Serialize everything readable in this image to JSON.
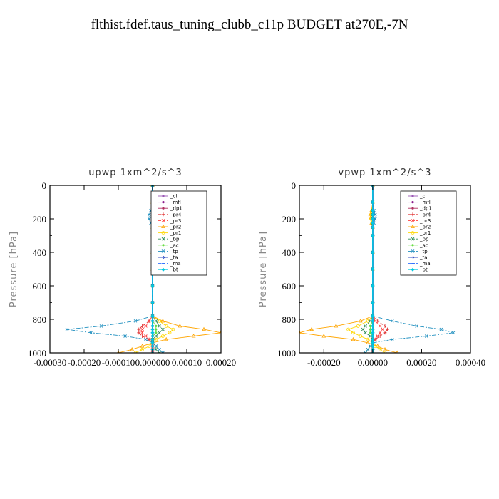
{
  "figure_title": "flthist.fdef.taus_tuning_clubb_c11p  BUDGET at270E,-7N",
  "series_styles": [
    {
      "name": "_cl",
      "color": "#9b59b6",
      "marker": "dot",
      "dash": ""
    },
    {
      "name": "_mfl",
      "color": "#8b1a8b",
      "marker": "dot",
      "dash": ""
    },
    {
      "name": "_dp1",
      "color": "#b03060",
      "marker": "dot",
      "dash": ""
    },
    {
      "name": "_pr4",
      "color": "#e03030",
      "marker": "plus",
      "dash": "4,2"
    },
    {
      "name": "_pr3",
      "color": "#ff4040",
      "marker": "x",
      "dash": "4,2"
    },
    {
      "name": "_pr2",
      "color": "#ffa500",
      "marker": "tri",
      "dash": ""
    },
    {
      "name": "_pr1",
      "color": "#ffd700",
      "marker": "circle",
      "dash": ""
    },
    {
      "name": "_bp",
      "color": "#2e8b57",
      "marker": "x",
      "dash": "4,2"
    },
    {
      "name": "_ac",
      "color": "#66dd44",
      "marker": "dot",
      "dash": ""
    },
    {
      "name": "_tp",
      "color": "#1f8fbf",
      "marker": "x",
      "dash": "6,2,2,2"
    },
    {
      "name": "_ta",
      "color": "#2040c0",
      "marker": "arrow",
      "dash": ""
    },
    {
      "name": "_ma",
      "color": "#3070ff",
      "marker": "dash",
      "dash": "4,2"
    },
    {
      "name": "_bt",
      "color": "#00c8e0",
      "marker": "diamond",
      "dash": ""
    }
  ],
  "chart_data": [
    {
      "type": "line",
      "title": "upwp   1xm^2/s^3",
      "xlabel": "",
      "ylabel": "Pressure [hPa]",
      "xlim": [
        -0.0003,
        0.0002
      ],
      "ylim": [
        1000,
        0
      ],
      "x_tick_labels": [
        "-0.00030",
        "-0.00020",
        "-0.00010",
        "0.000000",
        "0.00010",
        "0.00020"
      ],
      "x_ticks": [
        -0.0003,
        -0.0002,
        -0.0001,
        0.0,
        0.0001,
        0.0002
      ],
      "y_ticks": [
        0,
        200,
        400,
        600,
        800,
        1000
      ],
      "y_tick_labels": [
        "0",
        "200",
        "400",
        "600",
        "800",
        "1000"
      ],
      "grid": false,
      "legend_position": "top-right",
      "pressure_levels": [
        0,
        100,
        150,
        175,
        200,
        225,
        250,
        300,
        400,
        500,
        600,
        700,
        780,
        810,
        840,
        860,
        880,
        900,
        920,
        940,
        960,
        980,
        1000
      ],
      "series": [
        {
          "name": "_cl",
          "values": [
            0,
            0,
            0,
            0,
            0,
            0,
            0,
            0,
            0,
            0,
            0,
            0,
            0,
            0,
            0,
            0,
            0,
            0,
            0,
            0,
            0,
            0,
            0
          ]
        },
        {
          "name": "_mfl",
          "values": [
            0,
            0,
            0,
            0,
            0,
            0,
            0,
            0,
            0,
            0,
            0,
            0,
            0,
            0,
            0,
            0,
            0,
            0,
            0,
            0,
            0,
            0,
            0
          ]
        },
        {
          "name": "_dp1",
          "values": [
            0,
            0,
            0,
            0,
            0,
            0,
            0,
            0,
            0,
            0,
            0,
            0,
            0,
            0,
            0,
            0,
            0,
            0,
            0,
            0,
            0,
            0,
            0
          ]
        },
        {
          "name": "_pr4",
          "values": [
            0,
            0,
            0,
            0,
            0,
            0,
            0,
            0,
            0,
            0,
            0,
            0,
            0,
            -1e-05,
            -3e-05,
            -4e-05,
            -4e-05,
            -3e-05,
            -1e-05,
            0,
            0,
            0,
            0
          ]
        },
        {
          "name": "_pr3",
          "values": [
            0,
            0,
            0,
            0,
            0,
            0,
            0,
            0,
            0,
            0,
            0,
            0,
            0,
            -1e-05,
            -2e-05,
            -3e-05,
            -3e-05,
            -2e-05,
            -1e-05,
            0,
            0,
            0,
            0
          ]
        },
        {
          "name": "_pr2",
          "values": [
            0,
            0,
            5e-06,
            1e-05,
            1e-05,
            5e-06,
            0,
            0,
            0,
            0,
            0,
            0,
            0,
            3e-05,
            8e-05,
            0.00015,
            0.0002,
            0.00012,
            4e-05,
            0,
            -3e-05,
            -6e-05,
            -0.0001
          ]
        },
        {
          "name": "_pr1",
          "values": [
            0,
            0,
            3e-06,
            6e-06,
            6e-06,
            3e-06,
            0,
            0,
            0,
            0,
            0,
            0,
            0,
            2e-05,
            4e-05,
            6e-05,
            5e-05,
            3e-05,
            1e-05,
            0,
            -1e-05,
            -3e-05,
            -5e-05
          ]
        },
        {
          "name": "_bp",
          "values": [
            0,
            0,
            0,
            0,
            0,
            0,
            0,
            0,
            0,
            0,
            0,
            0,
            0,
            1e-05,
            2e-05,
            3e-05,
            2e-05,
            1e-05,
            0,
            0,
            1e-05,
            1e-05,
            2e-05
          ]
        },
        {
          "name": "_ac",
          "values": [
            0,
            0,
            0,
            0,
            0,
            0,
            0,
            0,
            0,
            0,
            0,
            0,
            0,
            0,
            1e-05,
            1e-05,
            1e-05,
            0,
            0,
            0,
            0,
            0,
            0
          ]
        },
        {
          "name": "_tp",
          "values": [
            0,
            0,
            -5e-06,
            -1e-05,
            -1e-05,
            -5e-06,
            0,
            0,
            0,
            0,
            0,
            0,
            0,
            -5e-05,
            -0.00015,
            -0.00025,
            -0.00018,
            -8e-05,
            -2e-05,
            0,
            1e-05,
            2e-05,
            3e-05
          ]
        },
        {
          "name": "_ta",
          "values": [
            0,
            0,
            0,
            0,
            0,
            0,
            0,
            0,
            0,
            0,
            0,
            0,
            0,
            0,
            0,
            0,
            0,
            0,
            0,
            0,
            0,
            0,
            0
          ]
        },
        {
          "name": "_ma",
          "values": [
            0,
            0,
            0,
            0,
            0,
            0,
            0,
            0,
            0,
            0,
            0,
            0,
            0,
            0,
            0,
            0,
            0,
            0,
            0,
            0,
            0,
            0,
            0
          ]
        },
        {
          "name": "_bt",
          "values": [
            0,
            0,
            0,
            0,
            0,
            0,
            0,
            0,
            0,
            0,
            0,
            0,
            0,
            0,
            0,
            0,
            0,
            0,
            0,
            0,
            0,
            0,
            0
          ]
        }
      ]
    },
    {
      "type": "line",
      "title": "vpwp   1xm^2/s^3",
      "xlabel": "",
      "ylabel": "Pressure [hPa]",
      "xlim": [
        -0.0003,
        0.0004
      ],
      "ylim": [
        1000,
        0
      ],
      "x_tick_labels": [
        "-0.00020",
        "0.00000",
        "0.00020",
        "0.00040"
      ],
      "x_ticks": [
        -0.0002,
        0.0,
        0.0002,
        0.0004
      ],
      "y_ticks": [
        0,
        200,
        400,
        600,
        800,
        1000
      ],
      "y_tick_labels": [
        "0",
        "200",
        "400",
        "600",
        "800",
        "1000"
      ],
      "grid": false,
      "legend_position": "top-right",
      "pressure_levels": [
        0,
        100,
        150,
        175,
        200,
        225,
        250,
        300,
        400,
        500,
        600,
        700,
        780,
        810,
        840,
        860,
        880,
        900,
        920,
        940,
        960,
        980,
        1000
      ],
      "series": [
        {
          "name": "_cl",
          "values": [
            0,
            0,
            0,
            0,
            0,
            0,
            0,
            0,
            0,
            0,
            0,
            0,
            0,
            0,
            0,
            0,
            0,
            0,
            0,
            0,
            0,
            0,
            0
          ]
        },
        {
          "name": "_mfl",
          "values": [
            0,
            0,
            0,
            0,
            0,
            0,
            0,
            0,
            0,
            0,
            0,
            0,
            0,
            0,
            0,
            0,
            0,
            0,
            0,
            0,
            0,
            0,
            0
          ]
        },
        {
          "name": "_dp1",
          "values": [
            0,
            0,
            0,
            0,
            0,
            0,
            0,
            0,
            0,
            0,
            0,
            0,
            0,
            0,
            0,
            0,
            0,
            0,
            0,
            0,
            0,
            0,
            0
          ]
        },
        {
          "name": "_pr4",
          "values": [
            0,
            0,
            0,
            0,
            0,
            0,
            0,
            0,
            0,
            0,
            0,
            0,
            0,
            2e-05,
            5e-05,
            6e-05,
            5e-05,
            3e-05,
            1e-05,
            0,
            0,
            0,
            0
          ]
        },
        {
          "name": "_pr3",
          "values": [
            0,
            0,
            0,
            0,
            0,
            0,
            0,
            0,
            0,
            0,
            0,
            0,
            0,
            1e-05,
            3e-05,
            4e-05,
            3e-05,
            2e-05,
            1e-05,
            0,
            0,
            0,
            0
          ]
        },
        {
          "name": "_pr2",
          "values": [
            0,
            0,
            -5e-06,
            -1e-05,
            -1e-05,
            -5e-06,
            0,
            0,
            0,
            0,
            0,
            0,
            0,
            -5e-05,
            -0.00015,
            -0.00025,
            -0.0003,
            -0.0002,
            -8e-05,
            -2e-05,
            2e-05,
            5e-05,
            0.0001
          ]
        },
        {
          "name": "_pr1",
          "values": [
            0,
            0,
            -3e-06,
            -6e-06,
            -6e-06,
            -3e-06,
            0,
            0,
            0,
            0,
            0,
            0,
            0,
            -2e-05,
            -6e-05,
            -0.0001,
            -8e-05,
            -5e-05,
            -2e-05,
            0,
            1e-05,
            3e-05,
            5e-05
          ]
        },
        {
          "name": "_bp",
          "values": [
            0,
            0,
            0,
            0,
            0,
            0,
            0,
            0,
            0,
            0,
            0,
            0,
            0,
            -1e-05,
            -3e-05,
            -4e-05,
            -3e-05,
            -1e-05,
            0,
            0,
            -1e-05,
            -2e-05,
            -3e-05
          ]
        },
        {
          "name": "_ac",
          "values": [
            0,
            0,
            0,
            0,
            0,
            0,
            0,
            0,
            0,
            0,
            0,
            0,
            0,
            0,
            -1e-05,
            -1e-05,
            -1e-05,
            0,
            0,
            0,
            0,
            0,
            0
          ]
        },
        {
          "name": "_tp",
          "values": [
            0,
            0,
            5e-06,
            1e-05,
            1e-05,
            5e-06,
            0,
            0,
            0,
            0,
            0,
            0,
            0,
            8e-05,
            0.00018,
            0.00028,
            0.00033,
            0.00022,
            8e-05,
            0,
            -1e-05,
            -2e-05,
            -3e-05
          ]
        },
        {
          "name": "_ta",
          "values": [
            0,
            0,
            0,
            0,
            0,
            0,
            0,
            0,
            0,
            0,
            0,
            0,
            0,
            0,
            0,
            0,
            0,
            0,
            0,
            0,
            0,
            0,
            0
          ]
        },
        {
          "name": "_ma",
          "values": [
            0,
            0,
            0,
            0,
            0,
            0,
            0,
            0,
            0,
            0,
            0,
            0,
            0,
            0,
            0,
            0,
            0,
            0,
            0,
            0,
            0,
            0,
            0
          ]
        },
        {
          "name": "_bt",
          "values": [
            0,
            0,
            0,
            0,
            0,
            0,
            0,
            0,
            0,
            0,
            0,
            0,
            0,
            0,
            0,
            0,
            0,
            0,
            0,
            0,
            0,
            0,
            0
          ]
        }
      ]
    }
  ]
}
